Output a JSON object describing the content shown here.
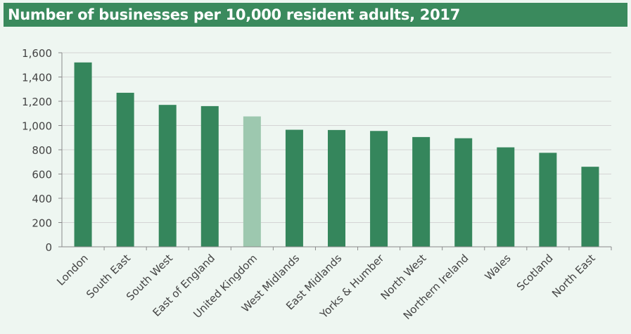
{
  "chart_data": {
    "type": "bar",
    "title": "Number of businesses per 10,000 resident adults, 2017",
    "xlabel": "",
    "ylabel": "",
    "ylim": [
      0,
      1600
    ],
    "yticks": [
      "0",
      "200",
      "400",
      "600",
      "800",
      "1,000",
      "1,200",
      "1,400",
      "1,600"
    ],
    "ytick_values": [
      0,
      200,
      400,
      600,
      800,
      1000,
      1200,
      1400,
      1600
    ],
    "grid": true,
    "categories": [
      "London",
      "South East",
      "South West",
      "East of England",
      "United Kingdom",
      "West Midlands",
      "East Midlands",
      "Yorks & Humber",
      "North West",
      "Northern Ireland",
      "Wales",
      "Scotland",
      "North East"
    ],
    "values": [
      1520,
      1270,
      1170,
      1160,
      1075,
      965,
      963,
      955,
      905,
      895,
      820,
      775,
      660
    ],
    "colors": {
      "bar": "#35865c",
      "highlight": "#9dc8af",
      "highlight_category": "United Kingdom",
      "grid": "#d4d4d4",
      "axis": "#8a8a8a",
      "text": "#444444",
      "background": "#eef6f1",
      "title_background": "#3a8a5d"
    }
  }
}
